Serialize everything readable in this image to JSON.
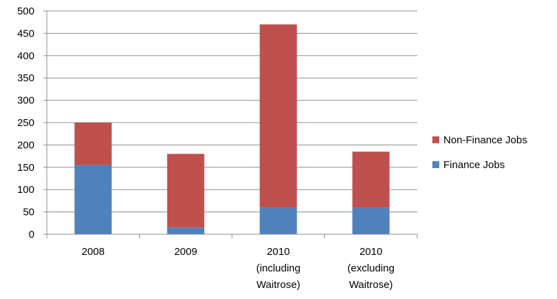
{
  "chart_data": {
    "type": "bar",
    "stacked": true,
    "title": "",
    "xlabel": "",
    "ylabel": "",
    "ylim": [
      0,
      500
    ],
    "yticks": [
      "0",
      "50",
      "100",
      "150",
      "200",
      "250",
      "300",
      "350",
      "400",
      "450",
      "500"
    ],
    "grid": true,
    "legend_position": "right",
    "categories": [
      [
        "2008"
      ],
      [
        "2009"
      ],
      [
        "2010",
        "(including",
        "Waitrose)"
      ],
      [
        "2010",
        "(excluding",
        "Waitrose)"
      ]
    ],
    "series": [
      {
        "name": "Finance Jobs",
        "color": "#4f81bd",
        "values": [
          155,
          15,
          60,
          60
        ]
      },
      {
        "name": "Non-Finance Jobs",
        "color": "#c0504d",
        "values": [
          95,
          165,
          410,
          125
        ]
      }
    ],
    "legend": [
      {
        "name": "Non-Finance Jobs",
        "color": "#c0504d"
      },
      {
        "name": "Finance Jobs",
        "color": "#4f81bd"
      }
    ]
  }
}
